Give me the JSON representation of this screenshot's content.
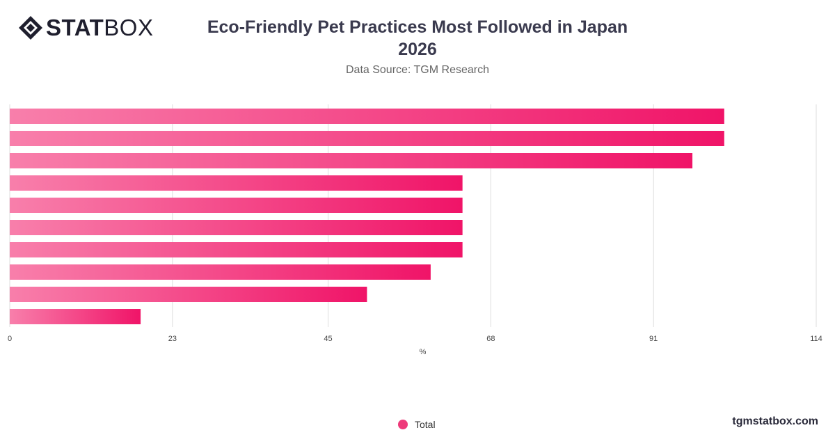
{
  "brand": {
    "logo_bold": "STAT",
    "logo_light": "BOX"
  },
  "header": {
    "title_line1": "Eco-Friendly Pet Practices Most Followed in Japan",
    "title_line2": "2026",
    "subtitle": "Data Source: TGM Research"
  },
  "footer": {
    "site": "tgmstatbox.com"
  },
  "colors": {
    "bar_start": "#f87fab",
    "bar_end": "#f01468",
    "grid": "#dddddd",
    "accent": "#ee3a7a"
  },
  "chart_data": {
    "type": "bar",
    "orientation": "horizontal",
    "categories": [
      "",
      "",
      "",
      "",
      "",
      "",
      "",
      "",
      "",
      ""
    ],
    "series": [
      {
        "name": "Total",
        "values": [
          101,
          101,
          96.5,
          64,
          64,
          64,
          64,
          59.5,
          50.5,
          18.5
        ]
      }
    ],
    "xlabel": "%",
    "xlim": [
      0,
      114
    ],
    "xticks": [
      0,
      23,
      45,
      68,
      91,
      114
    ],
    "grid": true,
    "legend": "bottom-center"
  }
}
